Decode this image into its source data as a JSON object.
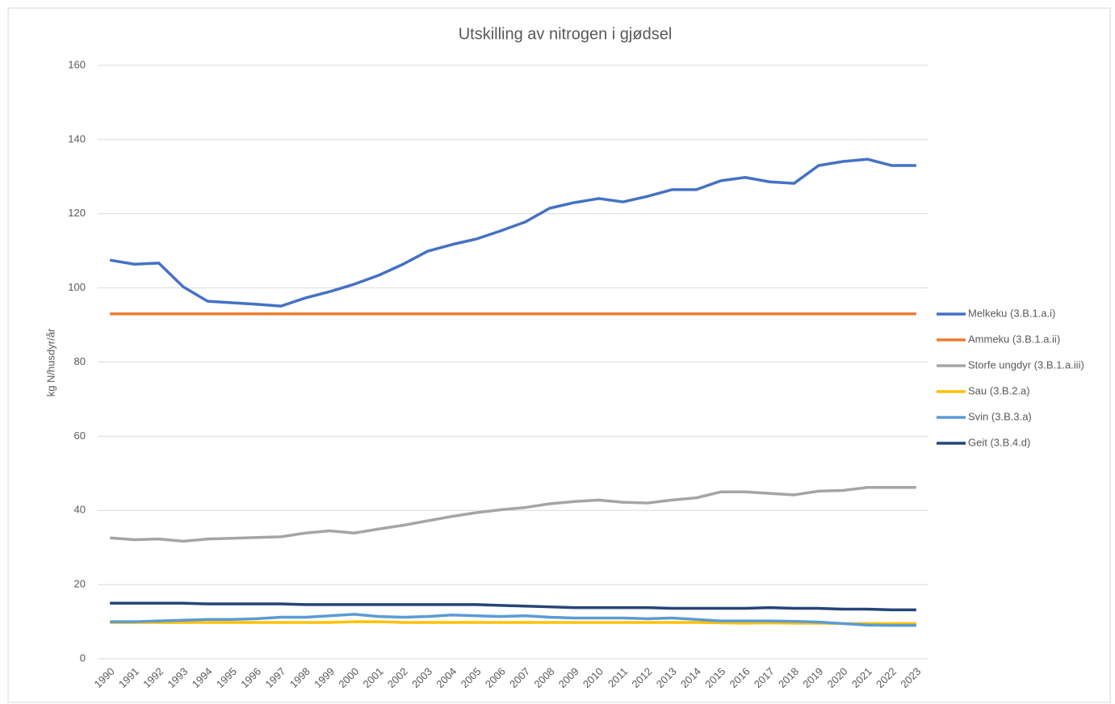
{
  "chart_data": {
    "type": "line",
    "title": "Utskilling av nitrogen i gjødsel",
    "y_label": "kg N/husdyr/år",
    "categories": [
      "1990",
      "1991",
      "1992",
      "1993",
      "1994",
      "1995",
      "1996",
      "1997",
      "1998",
      "1999",
      "2000",
      "2001",
      "2002",
      "2003",
      "2004",
      "2005",
      "2006",
      "2007",
      "2008",
      "2009",
      "2010",
      "2011",
      "2012",
      "2013",
      "2014",
      "2015",
      "2016",
      "2017",
      "2018",
      "2019",
      "2020",
      "2021",
      "2022",
      "2023"
    ],
    "series": [
      {
        "name": "Melkeku (3.B.1.a.i)",
        "color": "#4472c4",
        "values": [
          107.5,
          106.4,
          106.7,
          100.3,
          96.4,
          96.0,
          95.6,
          95.1,
          97.3,
          99.0,
          101.0,
          103.4,
          106.4,
          109.9,
          111.7,
          113.2,
          115.4,
          117.8,
          121.5,
          123.0,
          124.1,
          123.2,
          124.7,
          126.5,
          126.5,
          128.9,
          129.8,
          128.6,
          128.2,
          133.0,
          134.1,
          134.7,
          133.0,
          133.0
        ]
      },
      {
        "name": "Ammeku (3.B.1.a.ii)",
        "color": "#ed7d31",
        "values": [
          93,
          93,
          93,
          93,
          93,
          93,
          93,
          93,
          93,
          93,
          93,
          93,
          93,
          93,
          93,
          93,
          93,
          93,
          93,
          93,
          93,
          93,
          93,
          93,
          93,
          93,
          93,
          93,
          93,
          93,
          93,
          93,
          93,
          93
        ]
      },
      {
        "name": "Storfe ungdyr (3.B.1.a.iii)",
        "color": "#a5a5a5",
        "values": [
          32.6,
          32.1,
          32.3,
          31.7,
          32.3,
          32.5,
          32.7,
          32.9,
          33.9,
          34.5,
          33.9,
          35.0,
          36.0,
          37.2,
          38.4,
          39.4,
          40.2,
          40.8,
          41.8,
          42.4,
          42.8,
          42.2,
          42.0,
          42.8,
          43.4,
          45.0,
          45.0,
          44.6,
          44.2,
          45.2,
          45.4,
          46.2,
          46.2,
          46.2
        ]
      },
      {
        "name": "Sau (3.B.2.a)",
        "color": "#ffc000",
        "values": [
          9.8,
          9.8,
          9.8,
          9.8,
          9.8,
          9.8,
          9.8,
          9.8,
          9.8,
          9.8,
          10.0,
          10.0,
          9.8,
          9.8,
          9.8,
          9.8,
          9.8,
          9.8,
          9.8,
          9.8,
          9.8,
          9.8,
          9.8,
          9.8,
          9.8,
          9.7,
          9.6,
          9.7,
          9.6,
          9.6,
          9.5,
          9.5,
          9.5,
          9.5
        ]
      },
      {
        "name": "Svin (3.B.3.a)",
        "color": "#5b9bd5",
        "values": [
          10.0,
          10.0,
          10.2,
          10.4,
          10.6,
          10.6,
          10.8,
          11.2,
          11.2,
          11.6,
          12.0,
          11.4,
          11.2,
          11.4,
          11.8,
          11.6,
          11.4,
          11.6,
          11.2,
          11.0,
          11.0,
          11.0,
          10.8,
          11.0,
          10.6,
          10.2,
          10.2,
          10.2,
          10.1,
          9.9,
          9.5,
          9.1,
          9.0,
          9.0
        ]
      },
      {
        "name": "Geit (3.B.4.d)",
        "color": "#264478",
        "values": [
          15.0,
          15.0,
          15.0,
          15.0,
          14.8,
          14.8,
          14.8,
          14.8,
          14.6,
          14.6,
          14.6,
          14.6,
          14.6,
          14.6,
          14.6,
          14.6,
          14.4,
          14.2,
          14.0,
          13.8,
          13.8,
          13.8,
          13.8,
          13.6,
          13.6,
          13.6,
          13.6,
          13.8,
          13.6,
          13.6,
          13.4,
          13.4,
          13.2,
          13.2
        ]
      }
    ],
    "ylim": [
      0,
      160
    ],
    "yticks": [
      0,
      20,
      40,
      60,
      80,
      100,
      120,
      140,
      160
    ],
    "grid": true,
    "legend": "right"
  }
}
